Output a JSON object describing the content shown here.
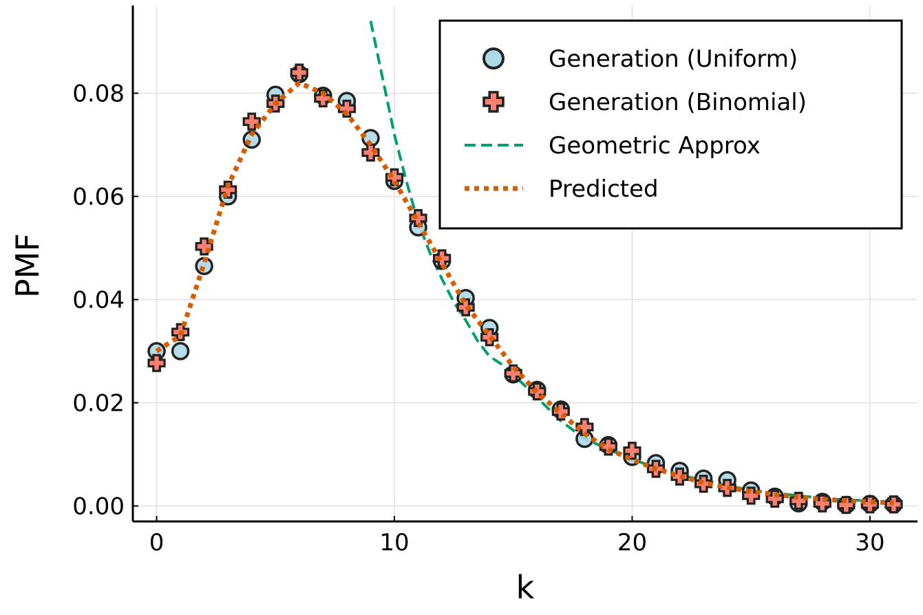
{
  "chart_data": {
    "type": "scatter",
    "title": "",
    "xlabel": "k",
    "ylabel": "PMF",
    "xlim": [
      -1,
      32
    ],
    "ylim": [
      -0.003,
      0.097
    ],
    "xticks": [
      0,
      10,
      20,
      30
    ],
    "xtick_labels": [
      "0",
      "10",
      "20",
      "30"
    ],
    "yticks": [
      0.0,
      0.02,
      0.04,
      0.06,
      0.08
    ],
    "ytick_labels": [
      "0.00",
      "0.02",
      "0.04",
      "0.06",
      "0.08"
    ],
    "grid": true,
    "legend_position": "top-right",
    "series": [
      {
        "name": "Generation (Uniform)",
        "kind": "scatter",
        "marker": "circle",
        "color": "#add8e6",
        "x": [
          0,
          1,
          2,
          3,
          4,
          5,
          6,
          7,
          8,
          9,
          10,
          11,
          12,
          13,
          14,
          15,
          16,
          17,
          18,
          19,
          20,
          21,
          22,
          23,
          24,
          25,
          26,
          27,
          28,
          29,
          30,
          31
        ],
        "values": [
          0.03,
          0.03,
          0.0465,
          0.06,
          0.071,
          0.0797,
          0.0837,
          0.0795,
          0.0785,
          0.0713,
          0.063,
          0.054,
          0.0475,
          0.0403,
          0.0345,
          0.0255,
          0.0225,
          0.0187,
          0.013,
          0.0118,
          0.0095,
          0.0083,
          0.0068,
          0.0053,
          0.005,
          0.003,
          0.0018,
          0.0005,
          0.0008,
          0.0002,
          0.0004,
          0.0003
        ]
      },
      {
        "name": "Generation (Binomial)",
        "kind": "scatter",
        "marker": "cross",
        "color": "#fa8072",
        "x": [
          0,
          1,
          2,
          3,
          4,
          5,
          6,
          7,
          8,
          9,
          10,
          11,
          12,
          13,
          14,
          15,
          16,
          17,
          18,
          19,
          20,
          21,
          22,
          23,
          24,
          25,
          26,
          27,
          28,
          29,
          30,
          31
        ],
        "values": [
          0.0277,
          0.0337,
          0.0503,
          0.0613,
          0.0745,
          0.078,
          0.084,
          0.079,
          0.077,
          0.0685,
          0.0637,
          0.0558,
          0.048,
          0.0385,
          0.0327,
          0.0257,
          0.0222,
          0.0183,
          0.0153,
          0.0115,
          0.0107,
          0.0072,
          0.0057,
          0.0043,
          0.0035,
          0.002,
          0.0014,
          0.001,
          0.0005,
          0.0002,
          0.0003,
          0.0003
        ]
      },
      {
        "name": "Geometric Approx",
        "kind": "line",
        "style": "dashed",
        "color": "#009e73",
        "x": [
          9,
          9.5,
          10,
          10.5,
          11,
          11.5,
          12,
          12.5,
          13,
          13.5,
          14,
          14.5,
          15,
          16,
          17,
          18,
          19,
          20,
          21,
          22,
          23,
          24,
          25,
          26,
          27,
          28,
          29,
          30,
          31
        ],
        "values": [
          0.094,
          0.083,
          0.072,
          0.063,
          0.055,
          0.049,
          0.044,
          0.0395,
          0.036,
          0.032,
          0.029,
          0.0275,
          0.0255,
          0.021,
          0.0165,
          0.013,
          0.011,
          0.009,
          0.0075,
          0.006,
          0.005,
          0.004,
          0.003,
          0.0025,
          0.002,
          0.0015,
          0.0012,
          0.001,
          0.0008
        ]
      },
      {
        "name": "Predicted",
        "kind": "line",
        "style": "dotted",
        "color": "#d55e00",
        "x": [
          0,
          1,
          2,
          3,
          4,
          5,
          6,
          7,
          8,
          9,
          10,
          11,
          12,
          13,
          14,
          15,
          16,
          17,
          18,
          19,
          20,
          21,
          22,
          23,
          24,
          25,
          26,
          27,
          28,
          29,
          30,
          31
        ],
        "values": [
          0.03,
          0.033,
          0.047,
          0.062,
          0.072,
          0.078,
          0.082,
          0.08,
          0.076,
          0.07,
          0.063,
          0.055,
          0.047,
          0.039,
          0.033,
          0.027,
          0.022,
          0.018,
          0.014,
          0.011,
          0.009,
          0.0072,
          0.0058,
          0.0045,
          0.0036,
          0.0028,
          0.0022,
          0.0017,
          0.0013,
          0.001,
          0.0008,
          0.0006
        ]
      }
    ]
  }
}
